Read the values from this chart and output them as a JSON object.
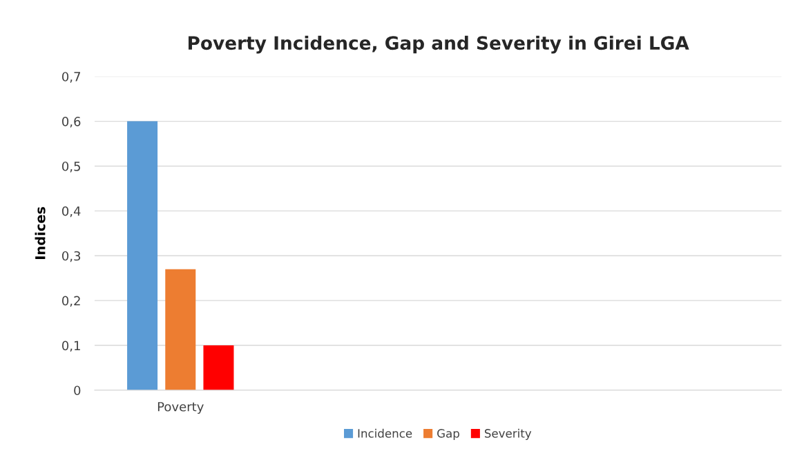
{
  "chart_data": {
    "type": "bar",
    "title": "Poverty Incidence, Gap and Severity in Girei LGA",
    "ylabel": "Indices",
    "categories": [
      "Poverty",
      null,
      null,
      null
    ],
    "series": [
      {
        "name": "Incidence",
        "color": "#5b9bd5",
        "values": [
          0.6,
          null,
          null,
          null
        ]
      },
      {
        "name": "Gap",
        "color": "#ed7d31",
        "values": [
          0.27,
          null,
          null,
          null
        ]
      },
      {
        "name": "Severity",
        "color": "#ff0000",
        "values": [
          0.1,
          null,
          null,
          null
        ]
      }
    ],
    "ylim": [
      0,
      0.7
    ],
    "yticks": [
      0,
      {
        "value": 0.1,
        "label": "0,1"
      },
      {
        "value": 0.2,
        "label": "0,2"
      },
      {
        "value": 0.3,
        "label": "0,3"
      },
      {
        "value": 0.4,
        "label": "0,4"
      },
      {
        "value": 0.5,
        "label": "0,5"
      },
      {
        "value": 0.6,
        "label": "0,6"
      },
      {
        "value": 0.7,
        "label": "0,7"
      }
    ],
    "grid": "y",
    "legend": "bottom"
  }
}
